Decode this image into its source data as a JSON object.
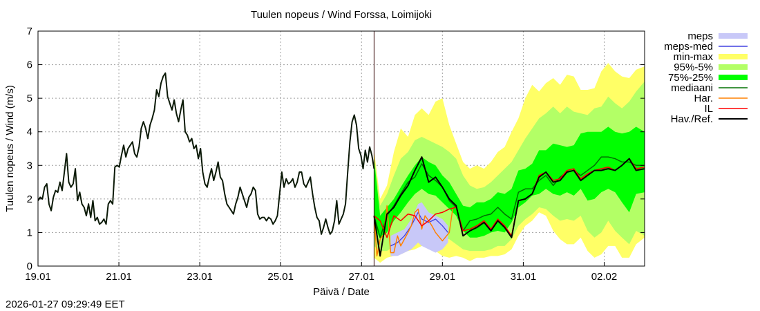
{
  "chart_data": {
    "type": "area",
    "title": "Tuulen nopeus / Wind  Forssa, Loimijoki",
    "xlabel": "Päivä / Date",
    "ylabel": "Tuulen nopeus / Wind (m/s)",
    "timestamp": "2026-01-27 09:29:49 EET",
    "x_unit": "days since 19.01 00:00",
    "xlim": [
      0,
      15
    ],
    "ylim": [
      0,
      7
    ],
    "yticks": [
      0,
      1,
      2,
      3,
      4,
      5,
      6,
      7
    ],
    "xticks": [
      {
        "x": 0,
        "label": "19.01"
      },
      {
        "x": 2,
        "label": "21.01"
      },
      {
        "x": 4,
        "label": "23.01"
      },
      {
        "x": 6,
        "label": "25.01"
      },
      {
        "x": 8,
        "label": "27.01"
      },
      {
        "x": 10,
        "label": "29.01"
      },
      {
        "x": 12,
        "label": "31.01"
      },
      {
        "x": 14,
        "label": "02.02"
      }
    ],
    "grid": true,
    "legend_position": "right-outside",
    "now_x": 8.31,
    "colors": {
      "meps": "#c8c8f8",
      "meps_med": "#4040e0",
      "minmax": "#ffff66",
      "p95_5": "#b3ff66",
      "p75_25": "#00ff00",
      "median": "#007000",
      "har": "#ff8000",
      "il": "#ff0000",
      "obs": "#000000"
    },
    "legend": [
      {
        "key": "meps",
        "label": "meps",
        "kind": "band"
      },
      {
        "key": "meps_med",
        "label": "meps-med",
        "kind": "line"
      },
      {
        "key": "minmax",
        "label": "min-max",
        "kind": "band"
      },
      {
        "key": "p95_5",
        "label": "95%-5%",
        "kind": "band"
      },
      {
        "key": "p75_25",
        "label": "75%-25%",
        "kind": "band"
      },
      {
        "key": "median",
        "label": "mediaani",
        "kind": "line"
      },
      {
        "key": "har",
        "label": "Har.",
        "kind": "line"
      },
      {
        "key": "il",
        "label": "IL",
        "kind": "line"
      },
      {
        "key": "obs",
        "label": "Hav./Ref.",
        "kind": "line"
      }
    ],
    "observed": {
      "x_start": 0,
      "x_end": 8.31,
      "values": [
        1.95,
        2.05,
        2.0,
        2.35,
        2.45,
        1.85,
        1.65,
        2.05,
        2.25,
        2.2,
        2.5,
        2.25,
        2.8,
        3.35,
        2.5,
        2.35,
        2.45,
        2.9,
        1.95,
        2.2,
        1.85,
        1.75,
        1.5,
        1.85,
        1.45,
        1.95,
        1.35,
        1.45,
        1.25,
        1.3,
        1.4,
        1.25,
        1.85,
        1.95,
        1.85,
        2.95,
        3.0,
        2.95,
        3.3,
        3.6,
        3.25,
        3.5,
        3.6,
        3.7,
        3.35,
        3.25,
        3.55,
        4.1,
        4.3,
        4.1,
        3.8,
        4.2,
        4.4,
        4.65,
        5.25,
        5.05,
        5.45,
        5.65,
        5.75,
        5.05,
        4.85,
        4.65,
        4.95,
        4.55,
        4.3,
        4.65,
        4.95,
        4.0,
        3.9,
        3.7,
        3.8,
        3.5,
        3.6,
        3.2,
        3.5,
        2.8,
        2.45,
        2.35,
        2.65,
        2.9,
        2.55,
        2.8,
        3.1,
        2.65,
        2.55,
        2.15,
        1.85,
        1.75,
        1.65,
        1.55,
        1.85,
        2.05,
        2.35,
        2.15,
        1.95,
        1.75,
        2.05,
        2.15,
        2.35,
        2.25,
        1.55,
        1.4,
        1.45,
        1.45,
        1.35,
        1.45,
        1.4,
        1.25,
        1.35,
        1.5,
        2.15,
        2.8,
        2.35,
        2.6,
        2.45,
        2.5,
        2.6,
        2.35,
        2.5,
        2.8,
        2.8,
        2.45,
        2.35,
        2.5,
        2.65,
        2.15,
        1.75,
        1.45,
        1.35,
        0.95,
        1.15,
        1.4,
        1.15,
        0.95,
        1.05,
        1.35,
        1.95,
        1.25,
        1.4,
        1.55,
        1.85,
        2.8,
        3.7,
        4.3,
        4.5,
        4.2,
        3.5,
        3.3,
        2.9,
        3.45,
        3.1,
        3.55,
        3.3,
        2.9
      ]
    },
    "forecast": {
      "x": [
        8.31,
        8.46,
        8.63,
        8.8,
        8.97,
        9.15,
        9.32,
        9.49,
        9.66,
        9.83,
        10.0,
        10.17,
        10.34,
        10.51,
        10.68,
        10.85,
        11.03,
        11.2,
        11.37,
        11.54,
        11.71,
        11.88,
        12.05,
        12.22,
        12.39,
        12.56,
        12.74,
        12.91,
        13.08,
        13.25,
        13.42,
        13.59,
        13.76,
        13.93,
        14.1,
        14.27,
        14.44,
        14.62,
        14.79,
        15.0
      ],
      "max": [
        3.45,
        2.0,
        2.4,
        3.4,
        4.1,
        3.85,
        4.5,
        4.7,
        4.5,
        4.9,
        5.0,
        4.2,
        3.65,
        3.1,
        2.9,
        3.0,
        2.9,
        3.1,
        3.4,
        3.55,
        4.0,
        4.4,
        5.0,
        5.4,
        5.2,
        5.45,
        5.6,
        5.4,
        5.7,
        5.65,
        5.25,
        5.25,
        5.3,
        5.8,
        6.05,
        5.8,
        5.65,
        5.6,
        5.85,
        5.95
      ],
      "p95": [
        3.3,
        1.8,
        2.15,
        2.7,
        3.2,
        3.4,
        3.75,
        3.85,
        3.75,
        3.65,
        3.55,
        3.4,
        3.2,
        2.7,
        2.4,
        2.3,
        2.35,
        2.5,
        2.7,
        2.9,
        3.1,
        3.45,
        3.8,
        4.1,
        4.4,
        4.55,
        4.75,
        4.55,
        4.75,
        4.6,
        4.55,
        4.5,
        4.7,
        4.75,
        5.05,
        4.85,
        4.7,
        4.9,
        5.2,
        5.5
      ],
      "p75": [
        3.2,
        1.5,
        1.75,
        2.0,
        2.35,
        2.7,
        3.0,
        3.25,
        3.1,
        3.0,
        2.7,
        2.5,
        2.15,
        1.8,
        1.75,
        1.9,
        1.9,
        2.0,
        2.2,
        2.15,
        2.3,
        2.85,
        2.9,
        3.05,
        3.45,
        3.45,
        3.65,
        3.6,
        3.55,
        3.6,
        3.95,
        4.0,
        4.0,
        4.0,
        4.15,
        4.0,
        3.95,
        4.0,
        4.15,
        4.0
      ],
      "p25": [
        1.2,
        0.8,
        1.0,
        1.35,
        1.6,
        1.9,
        2.15,
        2.3,
        2.15,
        2.1,
        1.9,
        1.7,
        1.5,
        1.05,
        0.85,
        0.85,
        0.9,
        1.0,
        1.05,
        1.0,
        1.3,
        1.75,
        1.9,
        2.1,
        2.15,
        2.3,
        2.15,
        2.1,
        2.2,
        2.1,
        2.3,
        1.95,
        2.0,
        2.2,
        2.3,
        2.2,
        1.9,
        1.6,
        2.15,
        2.2
      ],
      "p5": [
        0.6,
        0.45,
        0.45,
        0.6,
        0.8,
        1.0,
        1.2,
        1.5,
        1.4,
        1.2,
        0.85,
        0.8,
        0.65,
        0.5,
        0.45,
        0.45,
        0.45,
        0.5,
        0.6,
        0.6,
        0.8,
        1.2,
        1.4,
        1.55,
        1.75,
        1.7,
        1.5,
        1.35,
        1.4,
        1.35,
        1.5,
        1.05,
        0.85,
        1.0,
        1.35,
        1.05,
        0.85,
        0.65,
        1.05,
        0.9
      ],
      "min": [
        0.25,
        0.1,
        0.25,
        0.3,
        0.35,
        0.45,
        0.5,
        0.6,
        0.6,
        0.45,
        0.3,
        0.25,
        0.3,
        0.25,
        0.15,
        0.25,
        0.25,
        0.3,
        0.3,
        0.35,
        0.5,
        0.9,
        1.2,
        1.35,
        1.6,
        1.5,
        1.05,
        0.8,
        0.65,
        0.65,
        0.85,
        0.45,
        0.25,
        0.35,
        0.6,
        0.6,
        0.25,
        0.25,
        0.65,
        0.85
      ],
      "median": [
        1.5,
        0.85,
        1.5,
        1.8,
        2.15,
        2.5,
        2.65,
        3.05,
        2.7,
        2.55,
        2.35,
        1.95,
        1.75,
        1.05,
        1.35,
        1.4,
        1.5,
        1.55,
        1.75,
        1.55,
        1.4,
        2.2,
        2.3,
        2.3,
        2.55,
        2.7,
        2.4,
        2.65,
        2.8,
        2.85,
        2.7,
        2.85,
        3.0,
        3.25,
        3.25,
        3.2,
        3.1,
        3.1,
        3.0,
        3.0
      ],
      "obs_ref": [
        1.5,
        0.3,
        1.55,
        1.75,
        2.1,
        2.4,
        2.85,
        3.25,
        2.5,
        2.65,
        2.35,
        2.0,
        1.8,
        0.9,
        1.05,
        1.15,
        1.3,
        1.05,
        1.35,
        1.15,
        0.85,
        1.95,
        2.0,
        2.15,
        2.65,
        2.8,
        2.5,
        2.55,
        2.8,
        2.85,
        2.55,
        2.7,
        2.85,
        2.85,
        2.9,
        2.85,
        3.0,
        3.2,
        2.85,
        2.9
      ],
      "il": [
        1.5,
        1.35,
        0.85,
        1.5,
        1.35,
        1.55,
        1.5,
        1.2,
        1.35,
        1.55,
        1.6,
        1.7,
        1.75,
        1.05,
        1.1,
        1.2,
        1.35,
        1.1,
        1.4,
        1.2,
        0.9,
        1.95,
        2.0,
        2.15,
        2.7,
        2.8,
        2.55,
        2.6,
        2.85,
        2.9,
        2.6,
        2.75,
        2.85,
        2.9,
        2.95,
        2.85,
        3.0,
        3.2,
        2.9,
        2.95
      ]
    },
    "har": {
      "x": [
        8.31,
        8.38,
        8.46,
        8.55,
        8.63,
        8.72,
        8.8,
        8.89,
        8.97,
        9.06,
        9.15,
        9.23,
        9.32,
        9.4,
        9.49,
        9.57,
        9.66,
        9.74,
        9.83,
        10.0,
        10.17,
        10.26
      ],
      "values": [
        1.5,
        0.3,
        0.8,
        0.95,
        1.8,
        0.4,
        0.4,
        0.9,
        0.6,
        0.8,
        1.0,
        1.2,
        1.6,
        1.7,
        1.1,
        1.5,
        1.35,
        1.2,
        1.0,
        0.75,
        1.0,
        1.75
      ]
    },
    "meps": {
      "x": [
        8.72,
        8.89,
        9.06,
        9.23,
        9.4,
        9.49,
        9.66,
        9.83,
        10.0,
        10.14
      ],
      "low": [
        0.3,
        0.3,
        0.4,
        0.5,
        0.7,
        0.6,
        0.5,
        0.4,
        0.5,
        0.7
      ],
      "high": [
        0.9,
        1.0,
        1.1,
        1.4,
        1.85,
        1.9,
        1.6,
        1.5,
        1.4,
        1.2
      ],
      "med": [
        0.6,
        0.7,
        0.9,
        1.2,
        1.6,
        1.4,
        1.3,
        1.4,
        1.2,
        1.0
      ]
    }
  }
}
